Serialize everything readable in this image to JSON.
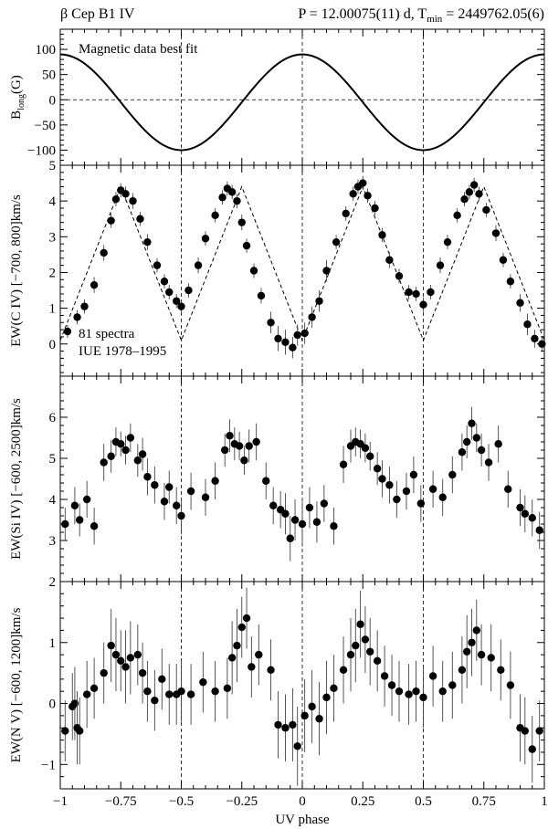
{
  "header": {
    "star": "β Cep   B1 IV",
    "ephemeris_prefix": "P = 12.00075(11) d, T",
    "ephemeris_sub": "min",
    "ephemeris_suffix": " = 2449762.05(6)"
  },
  "chart_data": [
    {
      "type": "line",
      "ylabel_main": "B",
      "ylabel_sub": "long",
      "ylabel_unit": "(G)",
      "ylim": [
        -130,
        140
      ],
      "yticks": [
        100,
        50,
        0,
        -50,
        -100
      ],
      "ytick_labels": [
        "100",
        "50",
        "0",
        "−50",
        "−100"
      ],
      "annotation": "Magnetic data best fit",
      "series": [
        {
          "model": "cosine",
          "amplitude": 95,
          "offset": -5,
          "period": 1,
          "phase_zero": 0
        }
      ],
      "zero_line": true
    },
    {
      "type": "scatter",
      "ylabel": "EW(C IV) [−700, 800]km/s",
      "ylim": [
        -0.9,
        5
      ],
      "yticks": [
        0,
        1,
        2,
        3,
        4,
        5
      ],
      "ytick_labels": [
        "0",
        "1",
        "2",
        "3",
        "4",
        "5"
      ],
      "annotations": [
        "81 spectra",
        "IUE 1978–1995"
      ],
      "fit": {
        "model": "triangle",
        "min": 0.1,
        "max": 4.4,
        "min_phase": 0,
        "max_phase": 0.25
      },
      "series": [
        {
          "x": [
            -0.97,
            -0.93,
            -0.9,
            -0.86,
            -0.82,
            -0.79,
            -0.77,
            -0.75,
            -0.73,
            -0.7,
            -0.67,
            -0.64,
            -0.6,
            -0.57,
            -0.55,
            -0.52,
            -0.5,
            -0.47,
            -0.43,
            -0.4,
            -0.36,
            -0.33,
            -0.31,
            -0.29,
            -0.27,
            -0.25,
            -0.23,
            -0.2,
            -0.17,
            -0.13,
            -0.1,
            -0.07,
            -0.04,
            -0.02,
            0.01,
            0.04,
            0.07,
            0.1,
            0.14,
            0.18,
            0.21,
            0.23,
            0.25,
            0.27,
            0.3,
            0.33,
            0.36,
            0.4,
            0.44,
            0.47,
            0.5,
            0.53,
            0.57,
            0.6,
            0.64,
            0.67,
            0.69,
            0.71,
            0.73,
            0.76,
            0.8,
            0.83,
            0.86,
            0.9,
            0.93,
            0.96,
            0.99
          ],
          "y": [
            0.35,
            0.75,
            1.05,
            1.65,
            2.55,
            3.45,
            4.05,
            4.3,
            4.2,
            4.0,
            3.5,
            2.85,
            2.2,
            1.75,
            1.45,
            1.2,
            1.05,
            1.5,
            2.2,
            2.95,
            3.6,
            4.1,
            4.35,
            4.25,
            4.0,
            3.4,
            2.75,
            2.05,
            1.35,
            0.6,
            0.15,
            0.05,
            -0.1,
            0.25,
            0.3,
            0.75,
            1.2,
            2.05,
            2.85,
            3.65,
            4.2,
            4.4,
            4.5,
            4.15,
            3.8,
            3.05,
            2.35,
            1.9,
            1.45,
            1.4,
            1.1,
            1.45,
            2.2,
            2.85,
            3.6,
            4.05,
            4.25,
            4.45,
            4.2,
            3.75,
            3.1,
            2.35,
            1.75,
            1.15,
            0.55,
            0.15,
            0.0
          ],
          "err": [
            0.18,
            0.2,
            0.2,
            0.22,
            0.22,
            0.2,
            0.2,
            0.2,
            0.2,
            0.22,
            0.2,
            0.22,
            0.2,
            0.2,
            0.2,
            0.2,
            0.2,
            0.2,
            0.22,
            0.2,
            0.2,
            0.2,
            0.2,
            0.2,
            0.2,
            0.22,
            0.2,
            0.2,
            0.22,
            0.3,
            0.35,
            0.35,
            0.3,
            0.3,
            0.3,
            0.3,
            0.3,
            0.3,
            0.2,
            0.2,
            0.2,
            0.2,
            0.2,
            0.2,
            0.2,
            0.2,
            0.22,
            0.2,
            0.2,
            0.2,
            0.2,
            0.2,
            0.22,
            0.2,
            0.2,
            0.2,
            0.2,
            0.2,
            0.2,
            0.2,
            0.22,
            0.2,
            0.2,
            0.25,
            0.3,
            0.25,
            0.2
          ]
        }
      ]
    },
    {
      "type": "scatter",
      "ylabel": "EW(Si IV) [−600, 2500]km/s",
      "ylim": [
        2.0,
        7.0
      ],
      "yticks": [
        3,
        4,
        5,
        6
      ],
      "ytick_labels": [
        "3",
        "4",
        "5",
        "6"
      ],
      "series": [
        {
          "x": [
            -0.98,
            -0.94,
            -0.92,
            -0.89,
            -0.86,
            -0.82,
            -0.79,
            -0.77,
            -0.75,
            -0.73,
            -0.71,
            -0.68,
            -0.66,
            -0.64,
            -0.61,
            -0.57,
            -0.55,
            -0.52,
            -0.5,
            -0.46,
            -0.4,
            -0.36,
            -0.32,
            -0.3,
            -0.28,
            -0.26,
            -0.24,
            -0.22,
            -0.19,
            -0.15,
            -0.12,
            -0.09,
            -0.07,
            -0.05,
            -0.03,
            0.0,
            0.03,
            0.06,
            0.09,
            0.13,
            0.17,
            0.2,
            0.22,
            0.24,
            0.26,
            0.28,
            0.31,
            0.33,
            0.36,
            0.39,
            0.43,
            0.46,
            0.49,
            0.54,
            0.58,
            0.62,
            0.66,
            0.68,
            0.7,
            0.72,
            0.74,
            0.77,
            0.81,
            0.85,
            0.9,
            0.92,
            0.95,
            0.98
          ],
          "y": [
            3.4,
            3.85,
            3.5,
            4.0,
            3.35,
            4.9,
            5.05,
            5.4,
            5.35,
            5.2,
            5.5,
            4.95,
            5.1,
            4.55,
            4.35,
            3.95,
            4.3,
            3.85,
            3.6,
            4.2,
            4.05,
            4.45,
            5.2,
            5.55,
            5.35,
            5.3,
            4.95,
            5.3,
            5.4,
            4.45,
            3.85,
            3.75,
            3.65,
            3.05,
            3.5,
            3.4,
            3.8,
            3.45,
            3.9,
            3.35,
            4.85,
            5.3,
            5.4,
            5.35,
            5.25,
            5.05,
            4.75,
            4.5,
            4.35,
            4.0,
            4.2,
            4.6,
            3.9,
            4.25,
            4.05,
            4.6,
            5.15,
            5.4,
            5.85,
            5.5,
            5.2,
            4.9,
            5.35,
            4.25,
            3.8,
            3.65,
            3.55,
            3.25
          ],
          "err": [
            0.4,
            0.45,
            0.4,
            0.45,
            0.45,
            0.45,
            0.4,
            0.35,
            0.3,
            0.35,
            0.35,
            0.4,
            0.4,
            0.45,
            0.45,
            0.45,
            0.4,
            0.45,
            0.45,
            0.45,
            0.45,
            0.45,
            0.4,
            0.4,
            0.4,
            0.35,
            0.35,
            0.4,
            0.45,
            0.45,
            0.45,
            0.45,
            0.5,
            0.55,
            0.5,
            0.55,
            0.5,
            0.5,
            0.45,
            0.45,
            0.45,
            0.4,
            0.35,
            0.35,
            0.35,
            0.35,
            0.4,
            0.45,
            0.45,
            0.45,
            0.45,
            0.45,
            0.45,
            0.45,
            0.45,
            0.45,
            0.45,
            0.4,
            0.4,
            0.35,
            0.4,
            0.45,
            0.45,
            0.45,
            0.45,
            0.45,
            0.45,
            0.45
          ]
        }
      ]
    },
    {
      "type": "scatter",
      "ylabel": "EW(N V) [−600, 1200]km/s",
      "ylim": [
        -1.4,
        2.0
      ],
      "yticks": [
        -1,
        0,
        1,
        2
      ],
      "ytick_labels": [
        "−1",
        "0",
        "1",
        "2"
      ],
      "series": [
        {
          "x": [
            -0.98,
            -0.95,
            -0.94,
            -0.93,
            -0.92,
            -0.89,
            -0.86,
            -0.82,
            -0.79,
            -0.77,
            -0.75,
            -0.73,
            -0.71,
            -0.68,
            -0.66,
            -0.64,
            -0.61,
            -0.58,
            -0.55,
            -0.52,
            -0.5,
            -0.46,
            -0.41,
            -0.36,
            -0.31,
            -0.29,
            -0.27,
            -0.25,
            -0.23,
            -0.21,
            -0.18,
            -0.13,
            -0.1,
            -0.07,
            -0.04,
            -0.02,
            0.01,
            0.04,
            0.07,
            0.1,
            0.13,
            0.17,
            0.2,
            0.22,
            0.24,
            0.26,
            0.28,
            0.31,
            0.34,
            0.37,
            0.4,
            0.44,
            0.47,
            0.5,
            0.54,
            0.58,
            0.62,
            0.66,
            0.68,
            0.7,
            0.72,
            0.74,
            0.78,
            0.82,
            0.86,
            0.9,
            0.92,
            0.95,
            0.98
          ],
          "y": [
            -0.45,
            -0.05,
            0.0,
            -0.4,
            -0.45,
            0.15,
            0.25,
            0.5,
            0.95,
            0.8,
            0.7,
            0.6,
            0.75,
            0.8,
            0.5,
            0.2,
            0.05,
            0.4,
            0.15,
            0.15,
            0.2,
            0.15,
            0.35,
            0.2,
            0.25,
            0.75,
            0.95,
            1.25,
            1.4,
            0.6,
            0.8,
            0.55,
            -0.35,
            -0.4,
            -0.35,
            -0.7,
            -0.2,
            -0.05,
            -0.25,
            0.1,
            0.25,
            0.55,
            0.8,
            0.95,
            1.3,
            1.05,
            0.85,
            0.7,
            0.45,
            0.3,
            0.2,
            0.15,
            0.2,
            0.1,
            0.45,
            0.2,
            0.3,
            0.55,
            0.85,
            1.0,
            1.2,
            0.8,
            0.75,
            0.55,
            0.3,
            -0.4,
            -0.45,
            -0.75,
            -0.45
          ],
          "err": [
            0.5,
            0.55,
            0.6,
            0.6,
            0.55,
            0.55,
            0.5,
            0.5,
            0.6,
            0.6,
            0.5,
            0.6,
            0.6,
            0.5,
            0.5,
            0.5,
            0.5,
            0.5,
            0.5,
            0.5,
            0.5,
            0.5,
            0.5,
            0.5,
            0.5,
            0.6,
            0.6,
            0.5,
            0.5,
            0.5,
            0.5,
            0.5,
            0.55,
            0.55,
            0.6,
            0.65,
            0.6,
            0.6,
            0.6,
            0.6,
            0.55,
            0.55,
            0.6,
            0.6,
            0.55,
            0.55,
            0.55,
            0.5,
            0.5,
            0.5,
            0.5,
            0.5,
            0.5,
            0.5,
            0.5,
            0.5,
            0.55,
            0.55,
            0.6,
            0.55,
            0.5,
            0.5,
            0.55,
            0.5,
            0.55,
            0.55,
            0.55,
            0.55,
            0.5
          ]
        }
      ]
    }
  ],
  "xaxis": {
    "label": "UV phase",
    "xlim": [
      -1,
      1
    ],
    "ticks": [
      -1,
      -0.75,
      -0.5,
      -0.25,
      0,
      0.25,
      0.5,
      0.75,
      1
    ],
    "tick_labels": [
      "−1",
      "−0.75",
      "−0.5",
      "−0.25",
      "0",
      "0.25",
      "0.5",
      "0.75",
      "1"
    ],
    "dashed_verticals": [
      -0.5,
      0,
      0.5
    ]
  }
}
